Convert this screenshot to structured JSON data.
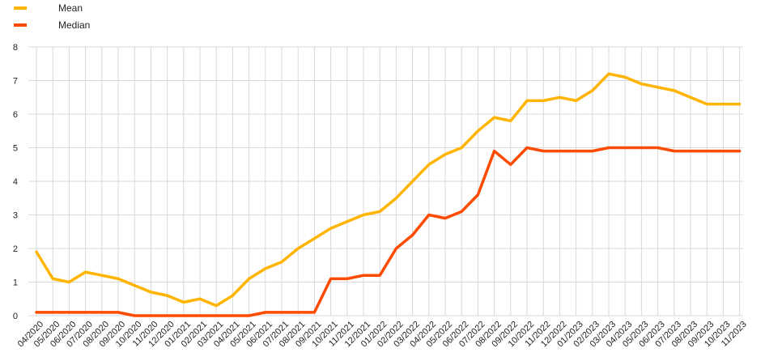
{
  "chart_data": {
    "type": "line",
    "title": "",
    "xlabel": "",
    "ylabel": "",
    "ylim": [
      0,
      8
    ],
    "yticks": [
      0,
      1,
      2,
      3,
      4,
      5,
      6,
      7,
      8
    ],
    "grid": "vertical and horizontal",
    "legend_position": "top-left",
    "categories": [
      "04/2020",
      "05/2020",
      "06/2020",
      "07/2020",
      "08/2020",
      "09/2020",
      "10/2020",
      "11/2020",
      "12/2020",
      "01/2021",
      "02/2021",
      "03/2021",
      "04/2021",
      "05/2021",
      "06/2021",
      "07/2021",
      "08/2021",
      "09/2021",
      "10/2021",
      "11/2021",
      "12/2021",
      "01/2022",
      "02/2022",
      "03/2022",
      "04/2022",
      "05/2022",
      "06/2022",
      "07/2022",
      "08/2022",
      "09/2022",
      "10/2022",
      "11/2022",
      "12/2022",
      "01/2023",
      "02/2023",
      "03/2023",
      "04/2023",
      "05/2023",
      "06/2023",
      "07/2023",
      "08/2023",
      "09/2023",
      "10/2023",
      "11/2023"
    ],
    "series": [
      {
        "name": "Mean",
        "color": "#FFB400",
        "values": [
          1.9,
          1.1,
          1.0,
          1.3,
          1.2,
          1.1,
          0.9,
          0.7,
          0.6,
          0.4,
          0.5,
          0.3,
          0.6,
          1.1,
          1.4,
          1.6,
          2.0,
          2.3,
          2.6,
          2.8,
          3.0,
          3.1,
          3.5,
          4.0,
          4.5,
          4.8,
          5.0,
          5.5,
          5.9,
          5.8,
          6.4,
          6.4,
          6.5,
          6.4,
          6.7,
          7.2,
          7.1,
          6.9,
          6.8,
          6.7,
          6.5,
          6.3,
          6.3,
          6.3
        ]
      },
      {
        "name": "Median",
        "color": "#FF4B00",
        "values": [
          0.1,
          0.1,
          0.1,
          0.1,
          0.1,
          0.1,
          0.0,
          0.0,
          0.0,
          0.0,
          0.0,
          0.0,
          0.0,
          0.0,
          0.1,
          0.1,
          0.1,
          0.1,
          1.1,
          1.1,
          1.2,
          1.2,
          2.0,
          2.4,
          3.0,
          2.9,
          3.1,
          3.6,
          4.9,
          4.5,
          5.0,
          4.9,
          4.9,
          4.9,
          4.9,
          5.0,
          5.0,
          5.0,
          5.0,
          4.9,
          4.9,
          4.9,
          4.9,
          4.9
        ]
      }
    ]
  }
}
